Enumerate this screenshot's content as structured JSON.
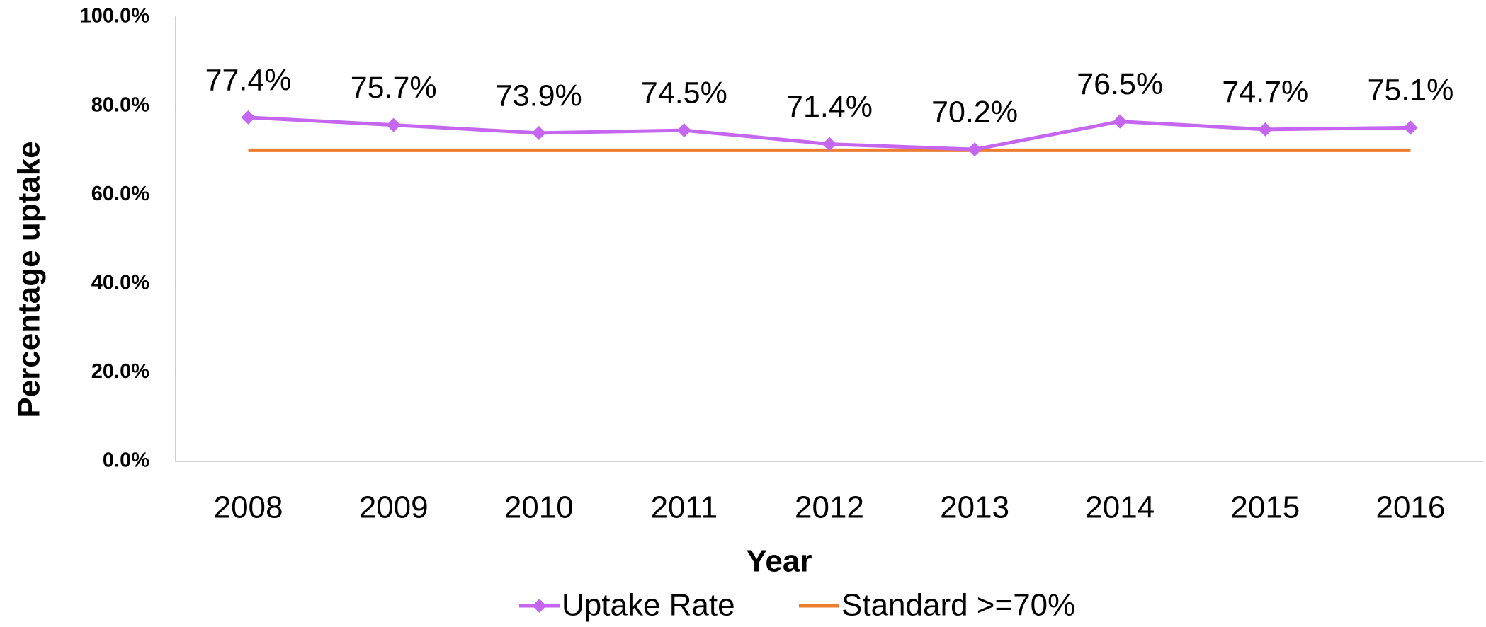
{
  "chart_data": {
    "type": "line",
    "x_label": "Year",
    "y_label": "Percentage uptake",
    "categories": [
      "2008",
      "2009",
      "2010",
      "2011",
      "2012",
      "2013",
      "2014",
      "2015",
      "2016"
    ],
    "series": [
      {
        "name": "Uptake Rate",
        "color": "#c566f0",
        "marker": "diamond",
        "values": [
          77.4,
          75.7,
          73.9,
          74.5,
          71.4,
          70.2,
          76.5,
          74.7,
          75.1
        ],
        "value_labels": [
          "77.4%",
          "75.7%",
          "73.9%",
          "74.5%",
          "71.4%",
          "70.2%",
          "76.5%",
          "74.7%",
          "75.1%"
        ]
      },
      {
        "name": "Standard >=70%",
        "color": "#ed7d31",
        "values": [
          70,
          70,
          70,
          70,
          70,
          70,
          70,
          70,
          70
        ]
      }
    ],
    "ylim": [
      0,
      100
    ],
    "yticks": [
      {
        "value": 0,
        "label": "0.0%"
      },
      {
        "value": 20,
        "label": "20.0%"
      },
      {
        "value": 40,
        "label": "40.0%"
      },
      {
        "value": 60,
        "label": "60.0%"
      },
      {
        "value": 80,
        "label": "80.0%"
      },
      {
        "value": 100,
        "label": "100.0%"
      }
    ],
    "grid": false,
    "legend": "bottom"
  }
}
